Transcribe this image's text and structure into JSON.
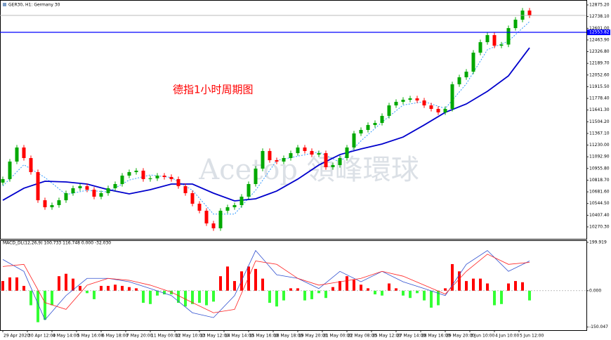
{
  "chart_data": [
    {
      "type": "candlestick",
      "title": "GER30, H1:  Germany 30",
      "annotation": "德指1小时周期图",
      "watermark": "Acetop 領峰環球",
      "up_color": "#00a800",
      "down_color": "#ff0000",
      "xlim": [
        -0.4,
        83.1
      ],
      "ylim": [
        10130,
        12933
      ],
      "yticks": [
        {
          "value": 12875.2,
          "label": "12875.20"
        },
        {
          "value": 12738.1,
          "label": "12738.10"
        },
        {
          "value": 12601,
          "label": "12601.00"
        },
        {
          "value": 12463.9,
          "label": "12463.90"
        },
        {
          "value": 12326.8,
          "label": "12326.80"
        },
        {
          "value": 12189.7,
          "label": "12189.70"
        },
        {
          "value": 12052.6,
          "label": "12052.60"
        },
        {
          "value": 11915.5,
          "label": "11915.50"
        },
        {
          "value": 11778.4,
          "label": "11778.40"
        },
        {
          "value": 11641.3,
          "label": "11641.30"
        },
        {
          "value": 11504.2,
          "label": "11504.20"
        },
        {
          "value": 11367.1,
          "label": "11367.10"
        },
        {
          "value": 11230,
          "label": "11230.00"
        },
        {
          "value": 11092.9,
          "label": "11092.90"
        },
        {
          "value": 10955.8,
          "label": "10955.80"
        },
        {
          "value": 10818.7,
          "label": "10818.70"
        },
        {
          "value": 10681.6,
          "label": "10681.60"
        },
        {
          "value": 10544.5,
          "label": "10544.50"
        },
        {
          "value": 10407.4,
          "label": "10407.40"
        },
        {
          "value": 10270.3,
          "label": "10270.30"
        }
      ],
      "hline": {
        "value": 12553.82,
        "label": "12553.82",
        "color": "#0000ff"
      },
      "bid": 12752,
      "bid_color": "#b0b0b0",
      "x": [
        0,
        1,
        2,
        3,
        4,
        5,
        6,
        7,
        8,
        9,
        10,
        11,
        12,
        13,
        14,
        15,
        16,
        17,
        18,
        19,
        20,
        21,
        22,
        23,
        24,
        25,
        26,
        27,
        28,
        29,
        30,
        31,
        32,
        33,
        34,
        35,
        36,
        37,
        38,
        39,
        40,
        41,
        42,
        43,
        44,
        45,
        46,
        47,
        48,
        49,
        50,
        51,
        52,
        53,
        54,
        55,
        56,
        57,
        58,
        59,
        60,
        61,
        62,
        63,
        64,
        65,
        66,
        67,
        68,
        69,
        70,
        71,
        72,
        73,
        74,
        75
      ],
      "open": [
        10790,
        10831,
        11037,
        11202,
        11078,
        10913,
        10583,
        10501,
        10526,
        10583,
        10666,
        10724,
        10748,
        10707,
        10625,
        10666,
        10724,
        10773,
        10872,
        10913,
        10930,
        10831,
        10840,
        10872,
        10856,
        10831,
        10748,
        10666,
        10542,
        10460,
        10311,
        10254,
        10460,
        10501,
        10526,
        10625,
        10773,
        10954,
        11161,
        11053,
        11037,
        11078,
        11136,
        11202,
        11161,
        11119,
        11136,
        10971,
        10996,
        11078,
        11202,
        11367,
        11408,
        11466,
        11490,
        11573,
        11696,
        11738,
        11762,
        11779,
        11754,
        11696,
        11655,
        11614,
        11655,
        11944,
        12026,
        12092,
        12315,
        12438,
        12521,
        12397,
        12410,
        12603,
        12702,
        12809
      ],
      "high": [
        10861,
        11067,
        11232,
        11232,
        11108,
        10943,
        10613,
        10556,
        10613,
        10696,
        10754,
        10778,
        10778,
        10737,
        10696,
        10754,
        10803,
        10902,
        10943,
        10960,
        10960,
        10870,
        10902,
        10902,
        10886,
        10861,
        10778,
        10696,
        10572,
        10490,
        10341,
        10490,
        10531,
        10556,
        10655,
        10803,
        10984,
        11191,
        11191,
        11083,
        11108,
        11166,
        11232,
        11232,
        11191,
        11166,
        11166,
        11026,
        11108,
        11232,
        11397,
        11438,
        11496,
        11520,
        11603,
        11726,
        11768,
        11792,
        11809,
        11809,
        11784,
        11726,
        11685,
        11685,
        11974,
        12056,
        12122,
        12345,
        12468,
        12551,
        12551,
        12440,
        12633,
        12732,
        12839,
        12839
      ],
      "low": [
        10760,
        10801,
        11007,
        11048,
        10883,
        10553,
        10471,
        10471,
        10496,
        10553,
        10636,
        10694,
        10677,
        10595,
        10595,
        10636,
        10694,
        10743,
        10842,
        10883,
        10801,
        10801,
        10810,
        10826,
        10801,
        10718,
        10636,
        10512,
        10430,
        10281,
        10224,
        10224,
        10430,
        10471,
        10496,
        10595,
        10743,
        10924,
        11023,
        11007,
        11007,
        11048,
        11106,
        11131,
        11089,
        11089,
        10941,
        10941,
        10966,
        11048,
        11172,
        11337,
        11378,
        11436,
        11460,
        11543,
        11666,
        11708,
        11732,
        11724,
        11666,
        11625,
        11584,
        11584,
        11625,
        11914,
        11996,
        12062,
        12285,
        12408,
        12367,
        12367,
        12380,
        12573,
        12672,
        12722
      ],
      "close": [
        10831,
        11037,
        11202,
        11078,
        10913,
        10583,
        10501,
        10526,
        10583,
        10666,
        10724,
        10748,
        10707,
        10625,
        10666,
        10724,
        10773,
        10872,
        10913,
        10930,
        10831,
        10840,
        10872,
        10856,
        10831,
        10748,
        10666,
        10542,
        10460,
        10311,
        10254,
        10460,
        10501,
        10526,
        10625,
        10773,
        10954,
        11161,
        11053,
        11037,
        11078,
        11136,
        11202,
        11161,
        11119,
        11136,
        10971,
        10996,
        11078,
        11202,
        11367,
        11408,
        11466,
        11490,
        11573,
        11696,
        11738,
        11762,
        11779,
        11754,
        11696,
        11655,
        11614,
        11655,
        11944,
        12026,
        12092,
        12315,
        12438,
        12521,
        12397,
        12410,
        12603,
        12702,
        12809,
        12752
      ],
      "series": [
        {
          "color": "#1e90ff",
          "style": "dotted",
          "x": [
            0,
            3,
            6,
            9,
            12,
            15,
            18,
            21,
            24,
            27,
            30,
            33,
            36,
            39,
            42,
            45,
            48,
            51,
            54,
            57,
            60,
            63,
            66,
            69,
            72,
            75
          ],
          "values": [
            10750,
            11000,
            10850,
            10650,
            10700,
            10680,
            10820,
            10880,
            10850,
            10700,
            10420,
            10420,
            10700,
            11050,
            11100,
            11150,
            11030,
            11280,
            11500,
            11700,
            11740,
            11660,
            11950,
            12350,
            12450,
            12680
          ]
        },
        {
          "color": "#0000cc",
          "style": "thick",
          "x": [
            0,
            3,
            6,
            9,
            12,
            15,
            18,
            21,
            24,
            27,
            30,
            33,
            36,
            39,
            42,
            45,
            48,
            51,
            54,
            57,
            60,
            63,
            66,
            69,
            72,
            75
          ],
          "values": [
            10583,
            10724,
            10806,
            10798,
            10773,
            10707,
            10658,
            10707,
            10773,
            10773,
            10666,
            10575,
            10600,
            10691,
            10831,
            10996,
            11119,
            11185,
            11243,
            11325,
            11466,
            11614,
            11713,
            11861,
            12043,
            12372
          ]
        }
      ]
    },
    {
      "type": "macd",
      "title": "MACD_DL(12,26,9) 100.733 116.748 0.000 -32.030",
      "pos_color": "#ff0000",
      "neg_color": "#33ff33",
      "xlim": [
        -0.4,
        83.1
      ],
      "ylim": [
        -162.9,
        208.5
      ],
      "yticks": [
        {
          "value": 199.919,
          "label": "199.919"
        },
        {
          "value": 0,
          "label": "0.000"
        },
        {
          "value": -150.047,
          "label": "-150.047"
        }
      ],
      "xticks": [
        {
          "value": 0,
          "label": "29 Apr 2020"
        },
        {
          "value": 3.5,
          "label": "30 Apr 12:00"
        },
        {
          "value": 7,
          "label": "4 May 14:00"
        },
        {
          "value": 10.5,
          "label": "5 May 16:00"
        },
        {
          "value": 14,
          "label": "6 May 18:00"
        },
        {
          "value": 17.5,
          "label": "7 May 20:00"
        },
        {
          "value": 21,
          "label": "11 May 00:00"
        },
        {
          "value": 24.5,
          "label": "12 May 10:00"
        },
        {
          "value": 28,
          "label": "13 May 12:00"
        },
        {
          "value": 31.5,
          "label": "14 May 14:00"
        },
        {
          "value": 35,
          "label": "15 May 16:00"
        },
        {
          "value": 38.5,
          "label": "18 May 18:00"
        },
        {
          "value": 42,
          "label": "19 May 20:00"
        },
        {
          "value": 45.5,
          "label": "21 May 00:00"
        },
        {
          "value": 49,
          "label": "22 May 08:00"
        },
        {
          "value": 52.5,
          "label": "25 May 12:00"
        },
        {
          "value": 56,
          "label": "27 May 14:00"
        },
        {
          "value": 59.5,
          "label": "28 May 16:00"
        },
        {
          "value": 63,
          "label": "29 May 20:00"
        },
        {
          "value": 66.5,
          "label": "3 Jun 10:00"
        },
        {
          "value": 70,
          "label": "4 Jun 10:00"
        },
        {
          "value": 73.5,
          "label": "5 Jun 12:00"
        }
      ],
      "x": [
        0,
        1,
        2,
        3,
        4,
        5,
        6,
        7,
        8,
        9,
        10,
        11,
        12,
        13,
        14,
        15,
        16,
        17,
        18,
        19,
        20,
        21,
        22,
        23,
        24,
        25,
        26,
        27,
        28,
        29,
        30,
        31,
        32,
        33,
        34,
        35,
        36,
        37,
        38,
        39,
        40,
        41,
        42,
        43,
        44,
        45,
        46,
        47,
        48,
        49,
        50,
        51,
        52,
        53,
        54,
        55,
        56,
        57,
        58,
        59,
        60,
        61,
        62,
        63,
        64,
        65,
        66,
        67,
        68,
        69,
        70,
        71,
        72,
        73,
        74,
        75
      ],
      "values": [
        40,
        55,
        55,
        20,
        -60,
        -130,
        -120,
        -60,
        60,
        70,
        50,
        20,
        -10,
        -35,
        20,
        20,
        25,
        20,
        15,
        10,
        -50,
        -55,
        -20,
        -15,
        -15,
        -50,
        -65,
        -55,
        -50,
        -60,
        -45,
        60,
        100,
        40,
        80,
        100,
        90,
        50,
        -50,
        -65,
        -40,
        10,
        10,
        -40,
        -35,
        -10,
        -30,
        15,
        40,
        60,
        45,
        25,
        10,
        -15,
        -20,
        30,
        10,
        -20,
        -30,
        -10,
        -40,
        -70,
        -60,
        10,
        110,
        80,
        40,
        50,
        50,
        30,
        -60,
        -55,
        30,
        40,
        35,
        -40
      ],
      "series": [
        {
          "color": "#3050d0",
          "style": "thin",
          "x": [
            0,
            3,
            6,
            9,
            12,
            15,
            18,
            21,
            24,
            27,
            30,
            33,
            36,
            39,
            42,
            45,
            48,
            51,
            54,
            57,
            60,
            63,
            66,
            69,
            72,
            75
          ],
          "values": [
            129,
            80,
            -120,
            -20,
            51,
            51,
            37,
            9,
            -20,
            -91,
            -111,
            -20,
            166,
            66,
            51,
            9,
            80,
            37,
            80,
            37,
            9,
            -20,
            109,
            166,
            80,
            123
          ]
        },
        {
          "color": "#ff2020",
          "style": "thin",
          "x": [
            0,
            3,
            6,
            9,
            12,
            15,
            18,
            21,
            24,
            27,
            30,
            33,
            36,
            39,
            42,
            45,
            48,
            51,
            54,
            57,
            60,
            63,
            66,
            69,
            72,
            75
          ],
          "values": [
            100,
            109,
            -49,
            -77,
            23,
            51,
            43,
            23,
            -6,
            -49,
            -91,
            -77,
            123,
            109,
            51,
            23,
            37,
            51,
            80,
            60,
            23,
            -14,
            80,
            151,
            109,
            117
          ]
        }
      ]
    }
  ]
}
